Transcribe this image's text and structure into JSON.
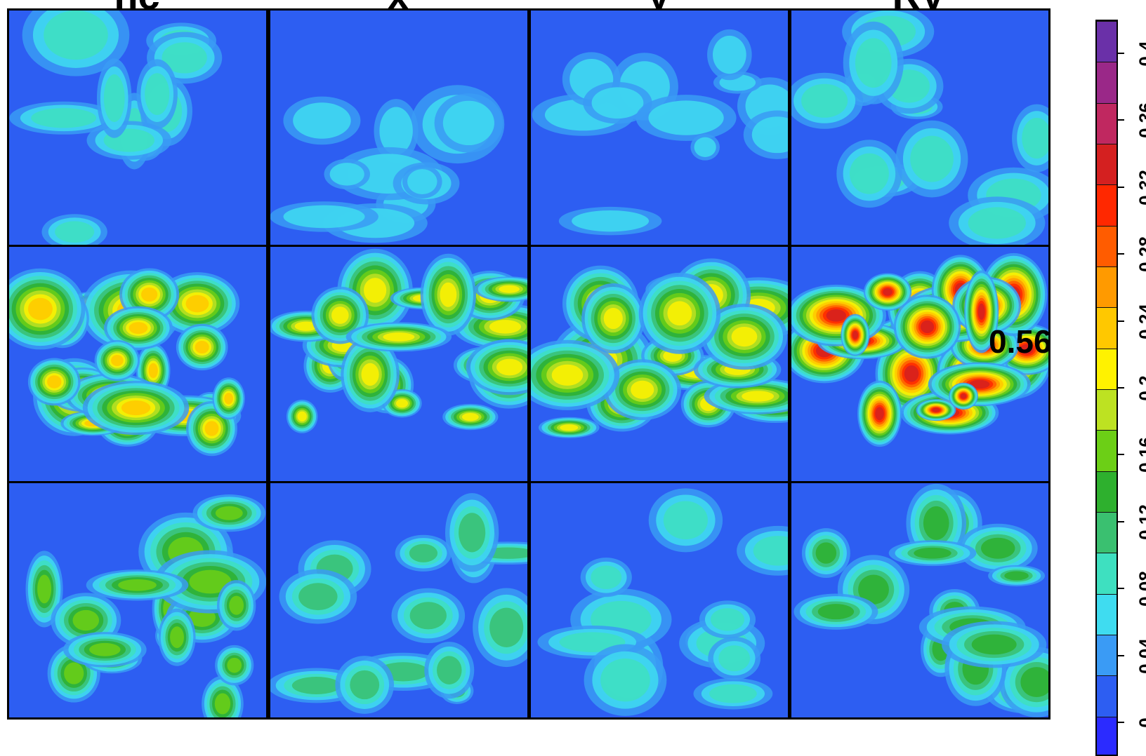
{
  "chart_data": {
    "type": "heatmap",
    "subtype": "filled-contour panels",
    "panel_titles": [
      "nc",
      "x",
      "y",
      "RV"
    ],
    "rows": 3,
    "cols": 4,
    "annotations": [
      {
        "panel": "row2-RV",
        "text": "0.56"
      }
    ],
    "colorbar": {
      "ticks": [
        "0",
        "0.04",
        "0.08",
        "0.12",
        "0.16",
        "0.2",
        "0.24",
        "0.28",
        "0.32",
        "0.36",
        "0.4"
      ],
      "range": [
        -0.02,
        0.42
      ],
      "levels": [
        "#2b2bff",
        "#2d5ef2",
        "#3a9bf5",
        "#3fdcf0",
        "#3ee0c0",
        "#3ac070",
        "#2eb02e",
        "#6ccf16",
        "#bde222",
        "#fff200",
        "#ffc800",
        "#ff9a00",
        "#ff5c00",
        "#ff2800",
        "#d42020",
        "#c02860",
        "#9a2888",
        "#6a30a8"
      ]
    },
    "intensity": [
      [
        0.02,
        0.015,
        0.01,
        0.03
      ],
      [
        0.18,
        0.17,
        0.16,
        0.3
      ],
      [
        0.12,
        0.05,
        0.04,
        0.08
      ]
    ]
  }
}
